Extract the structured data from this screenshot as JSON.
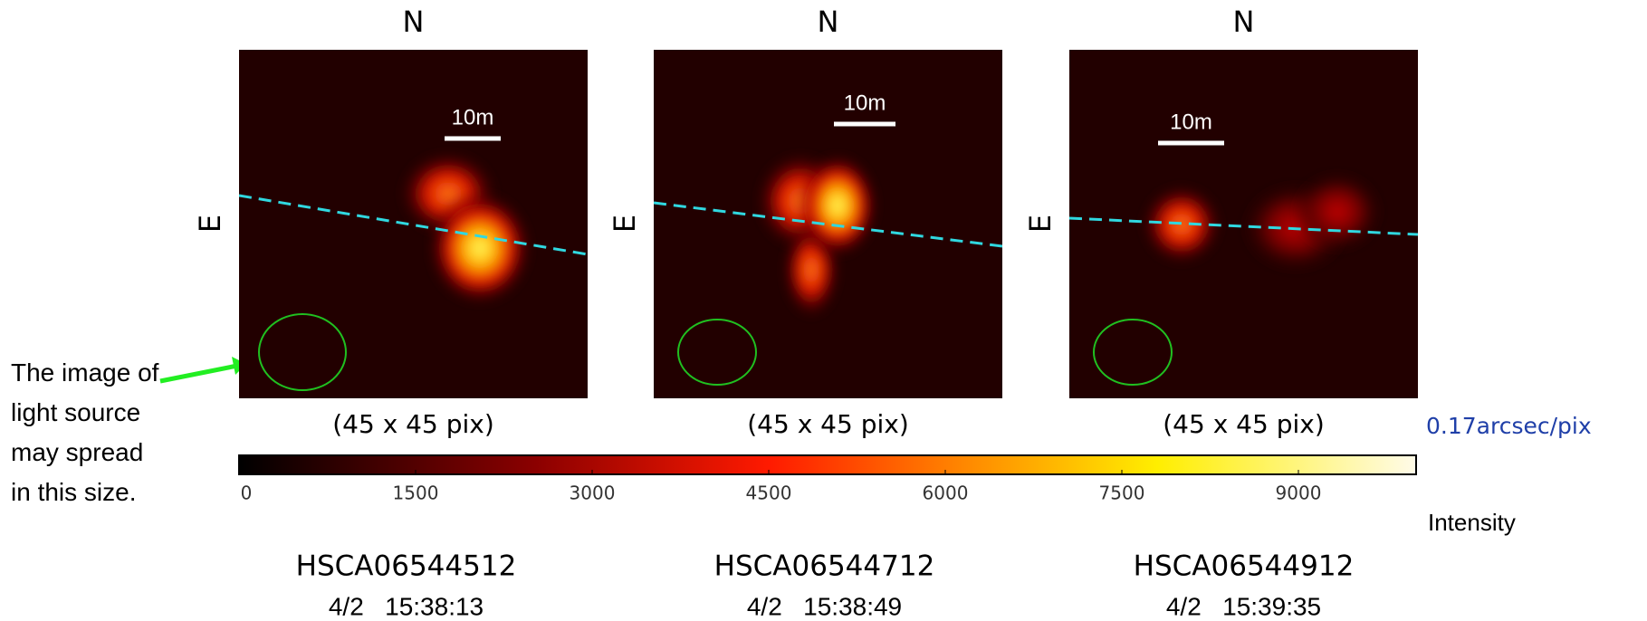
{
  "panels": [
    {
      "north": "N",
      "east": "E",
      "scale_bar": "10m",
      "size": "(45 x 45 pix)",
      "id": "HSCA06544512",
      "time": "4/2   15:38:13"
    },
    {
      "north": "N",
      "east": "E",
      "scale_bar": "10m",
      "size": "(45 x 45 pix)",
      "id": "HSCA06544712",
      "time": "4/2   15:38:49"
    },
    {
      "north": "N",
      "east": "E",
      "scale_bar": "10m",
      "size": "(45 x 45 pix)",
      "id": "HSCA06544912",
      "time": "4/2   15:39:35"
    }
  ],
  "colorbar": {
    "lim": [
      0,
      10000
    ],
    "ticks": [
      0,
      1500,
      3000,
      4500,
      6000,
      7500,
      9000
    ],
    "label": "Intensity"
  },
  "pixel_scale": "0.17arcsec/pix",
  "annotation": "The image of light source may spread in this size."
}
